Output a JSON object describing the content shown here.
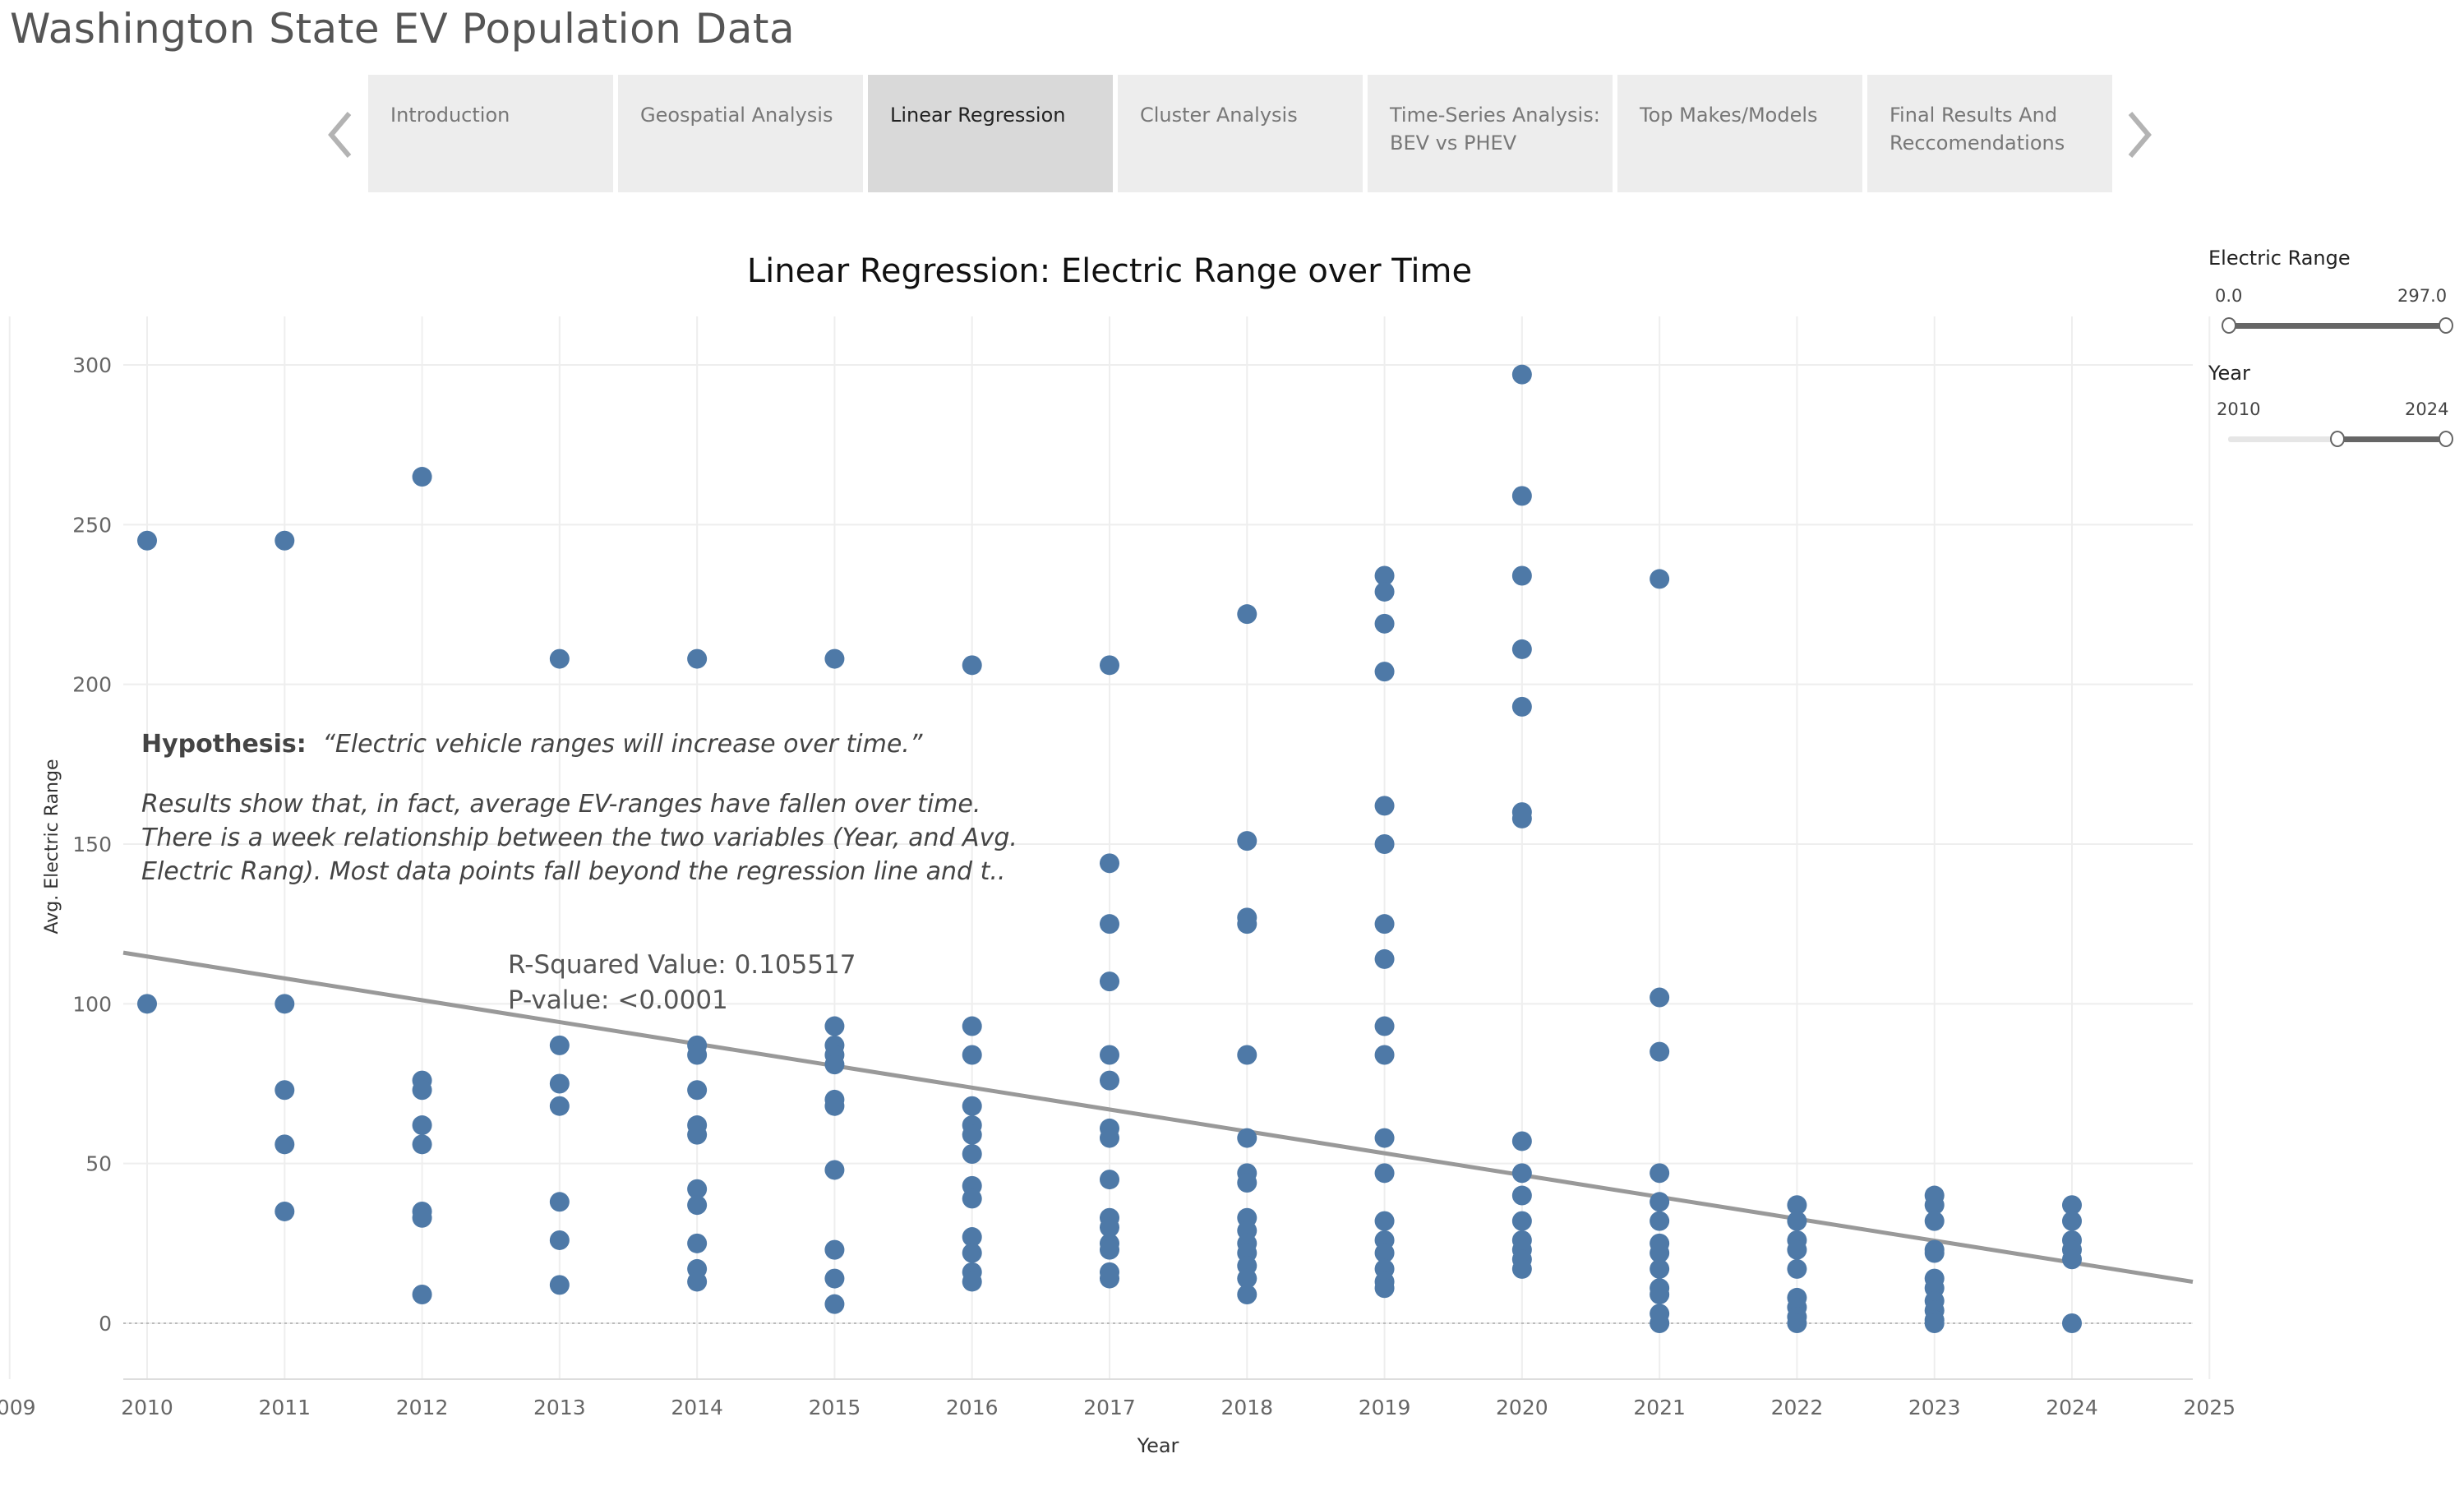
{
  "app": {
    "title": "Washington State EV Population Data"
  },
  "tabs": [
    {
      "label": "Introduction",
      "active": false
    },
    {
      "label": "Geospatial Analysis",
      "active": false
    },
    {
      "label": "Linear Regression",
      "active": true
    },
    {
      "label": "Cluster Analysis",
      "active": false
    },
    {
      "label": "Time-Series Analysis:\nBEV vs PHEV",
      "active": false
    },
    {
      "label": "Top Makes/Models",
      "active": false
    },
    {
      "label": "Final Results And\nReccomendations",
      "active": false
    }
  ],
  "filters": {
    "electric_range": {
      "label": "Electric Range",
      "min": "0.0",
      "max": "297.0",
      "selected": [
        0,
        297
      ],
      "bounds": [
        0,
        297
      ]
    },
    "year": {
      "label": "Year",
      "min": "2010",
      "max": "2024",
      "selected": [
        2017,
        2024
      ],
      "bounds": [
        2010,
        2024
      ]
    }
  },
  "annotations": {
    "hypothesis_label": "Hypothesis:",
    "hypothesis_text": "“Electric vehicle ranges will increase over time.”",
    "results_line1": "Results show that, in fact, average EV-ranges have fallen over time.",
    "results_line2": "There is a week relationship between the two variables (Year, and Avg.",
    "results_line3": "Electric Rang). Most data points fall beyond the regression line and t..",
    "r_squared": "R-Squared Value: 0.105517",
    "p_value": "P-value: <0.0001"
  },
  "colors": {
    "point": "#4e79a7",
    "trend": "#999999",
    "grid": "#eeeeee",
    "tab_active": "#d9d9d9",
    "tab": "#ededed"
  },
  "chart_data": {
    "type": "scatter",
    "title": "Linear Regression: Electric Range over Time",
    "xlabel": "Year",
    "ylabel": "Avg. Electric Range",
    "xlim": [
      2009,
      2025
    ],
    "ylim": [
      -17,
      315
    ],
    "x_ticks": [
      2009,
      2010,
      2011,
      2012,
      2013,
      2014,
      2015,
      2016,
      2017,
      2018,
      2019,
      2020,
      2021,
      2022,
      2023,
      2024,
      2025
    ],
    "y_ticks": [
      0,
      50,
      100,
      150,
      200,
      250,
      300
    ],
    "grid": true,
    "trend_line": {
      "x": [
        2009,
        2025
      ],
      "y": [
        116,
        13
      ]
    },
    "points": [
      {
        "x": 2010,
        "ys": [
          245,
          100
        ]
      },
      {
        "x": 2011,
        "ys": [
          245,
          100,
          73,
          56,
          35
        ]
      },
      {
        "x": 2012,
        "ys": [
          265,
          76,
          73,
          62,
          56,
          35,
          33,
          9
        ]
      },
      {
        "x": 2013,
        "ys": [
          208,
          87,
          75,
          68,
          38,
          26,
          12
        ]
      },
      {
        "x": 2014,
        "ys": [
          208,
          87,
          84,
          73,
          62,
          59,
          42,
          37,
          25,
          17,
          13
        ]
      },
      {
        "x": 2015,
        "ys": [
          208,
          93,
          87,
          84,
          81,
          70,
          68,
          48,
          23,
          14,
          6
        ]
      },
      {
        "x": 2016,
        "ys": [
          206,
          93,
          84,
          68,
          62,
          59,
          53,
          43,
          39,
          27,
          22,
          16,
          13
        ]
      },
      {
        "x": 2017,
        "ys": [
          206,
          144,
          125,
          107,
          84,
          76,
          61,
          58,
          45,
          33,
          30,
          25,
          23,
          16,
          14
        ]
      },
      {
        "x": 2018,
        "ys": [
          222,
          151,
          127,
          125,
          84,
          58,
          47,
          44,
          33,
          29,
          25,
          22,
          18,
          14,
          9
        ]
      },
      {
        "x": 2019,
        "ys": [
          234,
          229,
          219,
          204,
          162,
          150,
          125,
          114,
          93,
          84,
          58,
          47,
          32,
          26,
          22,
          17,
          13,
          11
        ]
      },
      {
        "x": 2020,
        "ys": [
          297,
          259,
          234,
          211,
          193,
          160,
          158,
          57,
          47,
          40,
          32,
          26,
          23,
          20,
          17
        ]
      },
      {
        "x": 2021,
        "ys": [
          233,
          102,
          85,
          47,
          38,
          32,
          25,
          22,
          17,
          11,
          9,
          3,
          0
        ]
      },
      {
        "x": 2022,
        "ys": [
          37,
          32,
          26,
          23,
          17,
          8,
          5,
          2,
          0
        ]
      },
      {
        "x": 2023,
        "ys": [
          40,
          37,
          32,
          23,
          22,
          14,
          11,
          7,
          4,
          1,
          0
        ]
      },
      {
        "x": 2024,
        "ys": [
          37,
          32,
          26,
          23,
          20,
          0
        ]
      }
    ]
  }
}
